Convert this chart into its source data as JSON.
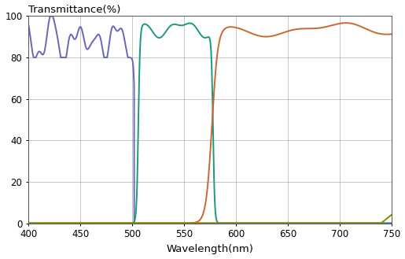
{
  "title": "Transmittance(%)",
  "xlabel": "Wavelength(nm)",
  "xlim": [
    400,
    750
  ],
  "ylim": [
    0,
    100
  ],
  "xticks": [
    400,
    450,
    500,
    550,
    600,
    650,
    700,
    750
  ],
  "yticks": [
    0,
    20,
    40,
    60,
    80,
    100
  ],
  "grid_color": "#999999",
  "background_color": "#ffffff",
  "curve_colors": [
    "#6666bb",
    "#1a9980",
    "#cc6633",
    "#8a8a00"
  ],
  "line_width": 1.4,
  "fig_size": [
    5.15,
    3.29
  ],
  "dpi": 100
}
